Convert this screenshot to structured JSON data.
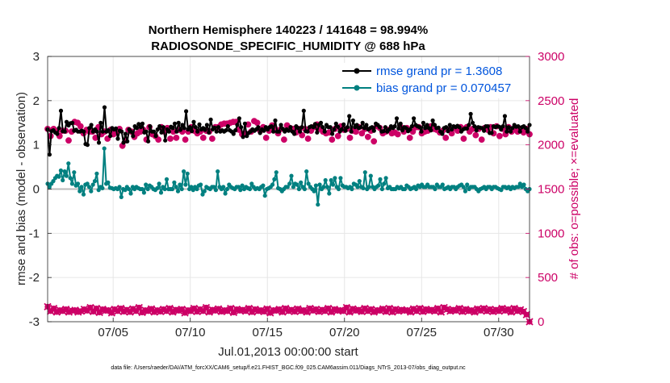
{
  "chart_data": {
    "type": "line",
    "title": [
      "Northern Hemisphere 140223 / 141648 = 98.994%",
      "RADIOSONDE_SPECIFIC_HUMIDITY @ 688 hPa"
    ],
    "xlabel": "Jul.01,2013 00:00:00 start",
    "ylabel": "rmse and bias (model - observation)",
    "ylabel_right": "# of obs: o=possible; ×=evaluated",
    "footnote": "data file: /Users/raeder/DAI/ATM_forcXX/CAM6_setup/f.e21.FHIST_BGC.f09_025.CAM6assim.011/Diags_NTrS_2013-07/obs_diag_output.nc",
    "x_ticks": [
      "07/05",
      "07/10",
      "07/15",
      "07/20",
      "07/25",
      "07/30"
    ],
    "y_ticks": [
      "-3",
      "-2",
      "-1",
      "0",
      "1",
      "2",
      "3"
    ],
    "y2_ticks": [
      "0",
      "500",
      "1000",
      "1500",
      "2000",
      "2500",
      "3000"
    ],
    "xlim": [
      0.75,
      32.0
    ],
    "ylim": [
      -3,
      3
    ],
    "y2lim": [
      0,
      3000
    ],
    "grid": true,
    "legend_position": "top-right",
    "colors": {
      "rmse": "#000000",
      "bias": "#008080",
      "obs": "#cc0066",
      "zero": "#bbbbbb",
      "legend_text": "#0055dd"
    },
    "series": [
      {
        "name": "rmse grand pr = 1.3608",
        "axis": "left",
        "values": [
          1.35,
          0.78,
          1.31,
          1.33,
          1.28,
          1.25,
          1.38,
          1.77,
          1.31,
          1.3,
          1.52,
          1.44,
          1.49,
          1.5,
          1.32,
          1.34,
          1.3,
          1.3,
          1.32,
          1.3,
          1.02,
          1.0,
          1.38,
          1.45,
          1.3,
          1.35,
          1.3,
          1.05,
          1.5,
          1.3,
          1.85,
          1.3,
          1.33,
          1.2,
          1.38,
          1.35,
          1.37,
          1.14,
          1.32,
          1.3,
          1.05,
          1.25,
          1.08,
          1.35,
          1.3,
          1.2,
          1.42,
          1.38,
          1.47,
          1.4,
          1.48,
          1.28,
          1.3,
          1.08,
          1.42,
          1.3,
          1.3,
          1.2,
          1.35,
          1.42,
          1.28,
          1.4,
          1.1,
          1.35,
          1.3,
          1.41,
          1.38,
          1.48,
          1.3,
          1.5,
          1.34,
          1.45,
          1.38,
          1.76,
          1.35,
          1.4,
          1.31,
          1.52,
          1.4,
          1.3,
          1.46,
          1.35,
          1.38,
          1.34,
          1.45,
          1.28,
          1.57,
          1.35,
          1.39,
          1.3,
          1.4,
          1.3,
          1.33,
          1.3,
          1.33,
          1.42,
          1.33,
          1.3,
          1.25,
          1.33,
          1.45,
          1.6,
          1.4,
          1.18,
          1.48,
          1.2,
          1.27,
          1.3,
          1.35,
          1.32,
          1.35,
          1.4,
          1.27,
          1.35,
          1.32,
          1.4,
          1.35,
          1.4,
          1.42,
          1.3,
          1.55,
          1.3,
          1.3,
          1.45,
          1.36,
          1.3,
          1.35,
          1.32,
          1.4,
          1.3,
          1.25,
          1.42,
          1.38,
          1.3,
          1.4,
          1.77,
          1.31,
          1.3,
          1.4,
          1.42,
          1.4,
          1.47,
          1.28,
          1.45,
          1.5,
          1.4,
          1.3,
          1.45,
          1.4,
          1.4,
          1.25,
          1.35,
          1.48,
          1.41,
          1.3,
          1.35,
          1.46,
          1.32,
          1.4,
          1.65,
          1.3,
          1.55,
          1.4,
          1.45,
          1.38,
          1.4,
          1.5,
          1.38,
          1.45,
          1.35,
          1.38,
          1.4,
          1.32,
          1.48,
          1.45,
          1.4,
          1.3,
          1.31,
          1.4,
          1.3,
          1.35,
          1.42,
          1.38,
          1.42,
          1.6,
          1.37,
          1.48,
          1.33,
          1.4,
          1.38,
          1.31,
          1.35,
          1.42,
          1.6,
          1.45,
          1.42,
          1.4,
          1.3,
          1.5,
          1.38,
          1.45,
          1.38,
          1.33,
          1.55,
          1.45,
          1.38,
          1.39,
          1.3,
          1.25,
          1.38,
          1.4,
          1.31,
          1.45,
          1.35,
          1.42,
          1.4,
          1.43,
          1.4,
          1.3,
          1.35,
          1.37,
          1.37,
          1.45,
          1.7,
          1.5,
          1.42,
          1.33,
          1.4,
          1.39,
          1.38,
          1.32,
          1.42,
          1.42,
          1.27,
          1.27,
          1.42,
          1.4,
          1.42,
          1.41,
          1.35,
          1.42,
          1.65,
          1.3,
          1.4,
          1.3,
          1.38,
          1.45,
          1.41,
          1.42,
          1.3,
          1.4,
          1.42,
          1.38,
          1.3,
          1.45
        ]
      },
      {
        "name": "bias grand pr = 0.070457",
        "axis": "left",
        "values": [
          0.12,
          0.05,
          0.12,
          0.18,
          0.25,
          0.3,
          0.28,
          0.42,
          0.2,
          0.4,
          0.3,
          0.58,
          0.25,
          0.12,
          0.38,
          0.08,
          0.12,
          -0.05,
          0.05,
          -0.12,
          0.1,
          0.12,
          0.05,
          -0.05,
          0.1,
          0.18,
          0.35,
          -0.02,
          0.05,
          0.02,
          0.92,
          0.12,
          0.15,
          0.03,
          0.02,
          0.0,
          0.02,
          0.0,
          0.05,
          -0.18,
          0.0,
          -0.02,
          0.05,
          0.0,
          -0.1,
          0.05,
          0.0,
          0.05,
          0.02,
          0.0,
          0.0,
          -0.08,
          0.1,
          0.0,
          0.08,
          0.05,
          0.0,
          -0.02,
          0.02,
          0.12,
          -0.08,
          0.05,
          0.0,
          0.22,
          0.0,
          0.0,
          0.0,
          0.15,
          0.05,
          -0.05,
          0.1,
          0.0,
          0.4,
          0.1,
          0.35,
          0.0,
          0.05,
          -0.02,
          0.05,
          0.0,
          0.08,
          0.1,
          -0.12,
          -0.05,
          0.05,
          0.02,
          0.0,
          0.05,
          0.05,
          -0.02,
          0.4,
          0.05,
          0.0,
          0.05,
          -0.1,
          0.0,
          0.1,
          0.05,
          0.02,
          0.0,
          0.05,
          0.05,
          -0.02,
          0.08,
          0.0,
          0.05,
          0.02,
          0.0,
          0.12,
          0.05,
          0.0,
          0.02,
          0.0,
          0.05,
          0.08,
          -0.15,
          0.0,
          0.02,
          0.05,
          0.1,
          0.22,
          0.38,
          0.02,
          0.0,
          -0.05,
          0.0,
          0.05,
          0.05,
          0.12,
          0.3,
          0.05,
          0.12,
          0.1,
          0.0,
          0.15,
          0.05,
          0.0,
          0.4,
          0.12,
          0.05,
          0.0,
          -0.05,
          0.08,
          -0.35,
          0.1,
          0.0,
          0.05,
          0.2,
          0.05,
          -0.1,
          0.2,
          0.1,
          0.25,
          0.05,
          0.0,
          0.25,
          0.08,
          0.05,
          0.05,
          0.02,
          0.05,
          0.0,
          0.12,
          0.1,
          0.05,
          0.18,
          0.05,
          0.02,
          0.38,
          0.0,
          0.05,
          0.3,
          0.05,
          0.0,
          0.05,
          0.08,
          0.22,
          0.0,
          0.12,
          0.25,
          0.02,
          0.05,
          0.0,
          0.0,
          0.0,
          0.05,
          0.02,
          0.05,
          0.0,
          0.0,
          0.08,
          0.05,
          0.0,
          0.02,
          0.05,
          0.0,
          0.08,
          0.05,
          0.1,
          0.05,
          0.05,
          0.1,
          0.05,
          0.05,
          0.05,
          0.0,
          0.1,
          0.05,
          0.05,
          0.1,
          0.0,
          0.02,
          0.05,
          0.0,
          0.05,
          0.05,
          0.0,
          0.05,
          0.08,
          0.1,
          0.05,
          -0.05,
          0.1,
          0.0,
          0.05,
          0.05,
          0.05,
          0.0,
          -0.05,
          0.0,
          0.02,
          0.05,
          0.0,
          0.05,
          0.05,
          0.0,
          0.05,
          0.05,
          0.02,
          0.0,
          -0.02,
          0.05,
          0.05,
          0.02,
          0.05,
          0.0,
          0.05,
          0.02,
          0.05,
          0.05,
          0.12,
          0.05,
          0.1,
          0.0,
          -0.05,
          0.0
        ]
      },
      {
        "name": "obs possible",
        "axis": "right",
        "marker": "o",
        "values": [
          2180,
          2100,
          2180,
          2150,
          2100,
          2160,
          2160,
          2050,
          2150,
          2260,
          2250,
          2210,
          2130,
          2170,
          2150,
          2150,
          2080,
          2200,
          2120,
          2150,
          2070,
          2170,
          2120,
          2150,
          2180,
          1990,
          2050,
          2170,
          2150,
          2090,
          2130,
          2150,
          2170,
          2060,
          2200,
          2120,
          2100,
          2060,
          2200,
          2150,
          2190,
          2070,
          2150,
          2080,
          2170,
          2150,
          2060,
          2150,
          2200,
          2160,
          2130,
          2150,
          2080,
          2160,
          2150,
          2070,
          2200,
          2200,
          2230,
          2240,
          2240,
          2250,
          2260,
          2260,
          2170,
          2120,
          2130,
          2230,
          2150,
          2270,
          2250,
          2160,
          2200,
          2080,
          2160,
          2220,
          2180,
          2130,
          2180,
          2060,
          2220,
          2190,
          2180,
          2140,
          2180,
          2110,
          2180,
          2070,
          2160,
          2200,
          2230,
          2180,
          2150,
          2130,
          2140,
          2060,
          2180,
          2100,
          2210,
          2170,
          2180,
          2080,
          2160,
          2150,
          2200,
          2130,
          2180,
          2090,
          2160,
          2040,
          2210,
          2190,
          2130,
          2150,
          2170,
          2130,
          2140,
          2120,
          2200,
          2150,
          2190,
          2080,
          2150,
          2200,
          2200,
          2130,
          2150,
          2160,
          2210,
          2180,
          2170,
          2140,
          2160,
          2080,
          2170,
          2130,
          2190,
          2160,
          2200,
          2070,
          2200,
          2150,
          2180,
          2110,
          2180,
          2060,
          2190,
          2170,
          2200,
          2130,
          2210,
          2100,
          2180,
          2120,
          2200,
          2150,
          2190,
          2150,
          2170,
          2140,
          2180,
          2120
        ]
      },
      {
        "name": "obs evaluated",
        "axis": "right",
        "marker": "x",
        "values": [
          170,
          120,
          150,
          110,
          130,
          120,
          140,
          110,
          125,
          130,
          110,
          120,
          140,
          125,
          160,
          115,
          150,
          105,
          140,
          125,
          130,
          100,
          140,
          120,
          150,
          115,
          135,
          110,
          145,
          120,
          160,
          105,
          130,
          120,
          145,
          110,
          130,
          115,
          140,
          120,
          150,
          110,
          135,
          125,
          140,
          100,
          130,
          120,
          150,
          115,
          140,
          120,
          160,
          110,
          135,
          125,
          145,
          115,
          130,
          120,
          150,
          105,
          140,
          125,
          135,
          120,
          150,
          110,
          140,
          120,
          130,
          115,
          145,
          100,
          130,
          125,
          140,
          110,
          150,
          120,
          135,
          115,
          145,
          120,
          130,
          110,
          150,
          125,
          140,
          115,
          135,
          120,
          150,
          110,
          140,
          125,
          130,
          120,
          160,
          110,
          145,
          125,
          135,
          115,
          150,
          120,
          140,
          110,
          130,
          125,
          145,
          115,
          150,
          110,
          140,
          120,
          135,
          125,
          130,
          110,
          145,
          120,
          150,
          115,
          140,
          125,
          135,
          120,
          150,
          110,
          160,
          140,
          120,
          135,
          125,
          150,
          115,
          140,
          120,
          130,
          110,
          145,
          125,
          150,
          120,
          140,
          115,
          135,
          120,
          150,
          125,
          140,
          110,
          150,
          120,
          135,
          115,
          80,
          0
        ]
      }
    ]
  }
}
